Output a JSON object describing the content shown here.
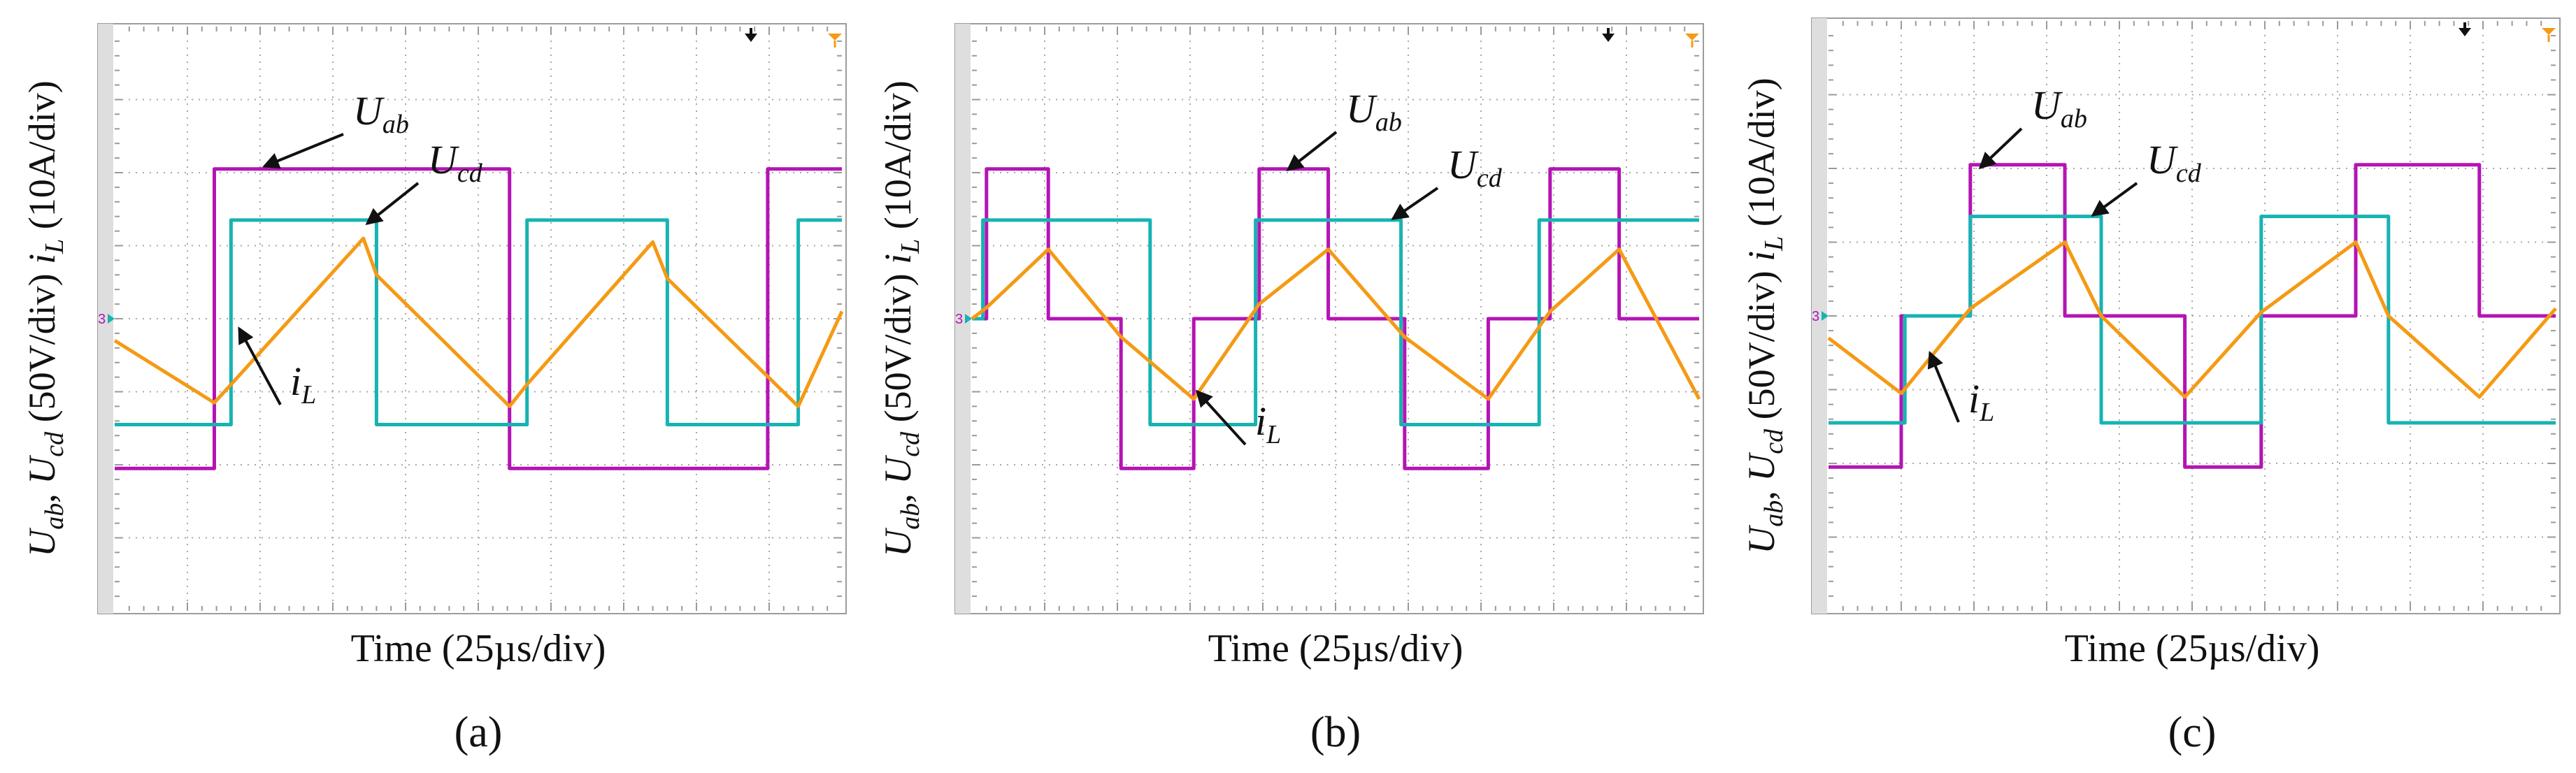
{
  "figure": {
    "xlabel": "Time (25µs/div)",
    "ylabel_parts": {
      "u": "U",
      "ab": "ab",
      "sep": ", ",
      "cd": "cd",
      "mid": " (50V/div) ",
      "i": "i",
      "L": "L",
      "end": " (10A/div)"
    },
    "colors": {
      "Uab": "#b414b4",
      "Ucd": "#17b3b3",
      "iL": "#f59a14",
      "grid": "#a8a8a8",
      "frame": "#9c9c9c"
    },
    "marker_text": "3",
    "grid": {
      "x_divisions": 10,
      "y_divisions": 8
    }
  },
  "chart_data": [
    {
      "type": "line",
      "panel_label": "(a)",
      "xlabel": "Time (25µs/div)",
      "ylabel": "Uab, Ucd (50V/div) iL (10A/div)",
      "xlim": [
        0,
        10
      ],
      "ylim": [
        -4,
        4
      ],
      "annotations": [
        {
          "series": "Uab",
          "base": "U",
          "sub": "ab"
        },
        {
          "series": "Ucd",
          "base": "U",
          "sub": "cd"
        },
        {
          "series": "iL",
          "base": "i",
          "sub": "L"
        }
      ],
      "series": [
        {
          "name": "Uab",
          "x": [
            0,
            1.37,
            1.37,
            5.43,
            5.43,
            8.98,
            8.98,
            10
          ],
          "y": [
            -2.05,
            -2.05,
            2.05,
            2.05,
            -2.05,
            -2.05,
            2.05,
            2.05
          ]
        },
        {
          "name": "Ucd",
          "x": [
            0,
            1.6,
            1.6,
            3.6,
            3.6,
            5.67,
            5.67,
            7.6,
            7.6,
            9.4,
            9.4,
            10
          ],
          "y": [
            -1.45,
            -1.45,
            1.35,
            1.35,
            -1.45,
            -1.45,
            1.35,
            1.35,
            -1.45,
            -1.45,
            1.35,
            1.35
          ]
        },
        {
          "name": "iL",
          "x": [
            0,
            1.37,
            1.6,
            3.42,
            3.6,
            5.43,
            5.67,
            7.4,
            7.6,
            9.4,
            10
          ],
          "y": [
            -0.3,
            -1.15,
            -0.9,
            1.1,
            0.6,
            -1.2,
            -0.9,
            1.05,
            0.55,
            -1.2,
            0.1
          ]
        }
      ]
    },
    {
      "type": "line",
      "panel_label": "(b)",
      "xlabel": "Time (25µs/div)",
      "ylabel": "Uab, Ucd (50V/div) iL (10A/div)",
      "xlim": [
        0,
        10
      ],
      "ylim": [
        -4,
        4
      ],
      "annotations": [
        {
          "series": "Uab",
          "base": "U",
          "sub": "ab"
        },
        {
          "series": "Ucd",
          "base": "U",
          "sub": "cd"
        },
        {
          "series": "iL",
          "base": "i",
          "sub": "L"
        }
      ],
      "series": [
        {
          "name": "Uab",
          "x": [
            0,
            0.2,
            0.2,
            1.05,
            1.05,
            2.05,
            2.05,
            3.05,
            3.05,
            3.95,
            3.95,
            4.9,
            4.9,
            5.95,
            5.95,
            7.1,
            7.1,
            7.95,
            7.95,
            8.9,
            8.9,
            10
          ],
          "y": [
            0,
            0,
            2.05,
            2.05,
            0,
            0,
            -2.05,
            -2.05,
            0,
            0,
            2.05,
            2.05,
            0,
            0,
            -2.05,
            -2.05,
            0,
            0,
            2.05,
            2.05,
            0,
            0
          ]
        },
        {
          "name": "Ucd",
          "x": [
            0,
            0.15,
            0.15,
            2.45,
            2.45,
            3.9,
            3.9,
            5.9,
            5.9,
            7.8,
            7.8,
            10
          ],
          "y": [
            0,
            0,
            1.35,
            1.35,
            -1.45,
            -1.45,
            1.35,
            1.35,
            -1.45,
            -1.45,
            1.35,
            1.35
          ]
        },
        {
          "name": "iL",
          "x": [
            0,
            0.2,
            1.05,
            2.05,
            3.05,
            3.95,
            4.9,
            5.95,
            7.1,
            7.95,
            8.9,
            10
          ],
          "y": [
            0,
            0.15,
            0.95,
            -0.25,
            -1.1,
            0.2,
            0.95,
            -0.25,
            -1.1,
            0.1,
            0.95,
            -1.1
          ]
        }
      ]
    },
    {
      "type": "line",
      "panel_label": "(c)",
      "xlabel": "Time (25µs/div)",
      "ylabel": "Uab, Ucd (50V/div) iL (10A/div)",
      "xlim": [
        0,
        10
      ],
      "ylim": [
        -4,
        4
      ],
      "annotations": [
        {
          "series": "Uab",
          "base": "U",
          "sub": "ab"
        },
        {
          "series": "Ucd",
          "base": "U",
          "sub": "cd"
        },
        {
          "series": "iL",
          "base": "i",
          "sub": "L"
        }
      ],
      "series": [
        {
          "name": "Uab",
          "x": [
            0,
            1.0,
            1.0,
            1.95,
            1.95,
            3.25,
            3.25,
            4.9,
            4.9,
            5.95,
            5.95,
            7.25,
            7.25,
            8.95,
            8.95,
            10
          ],
          "y": [
            -2.05,
            -2.05,
            0,
            0,
            2.05,
            2.05,
            0,
            0,
            -2.05,
            -2.05,
            0,
            0,
            2.05,
            2.05,
            0,
            0
          ]
        },
        {
          "name": "Ucd",
          "x": [
            0,
            1.05,
            1.05,
            1.95,
            1.95,
            3.75,
            3.75,
            5.95,
            5.95,
            7.7,
            7.7,
            10
          ],
          "y": [
            -1.45,
            -1.45,
            0,
            0,
            1.35,
            1.35,
            -1.45,
            -1.45,
            1.35,
            1.35,
            -1.45,
            -1.45
          ]
        },
        {
          "name": "iL",
          "x": [
            0,
            1.0,
            1.95,
            3.25,
            3.75,
            4.9,
            5.95,
            7.25,
            7.7,
            8.95,
            10
          ],
          "y": [
            -0.3,
            -1.05,
            0.1,
            1.0,
            0,
            -1.1,
            0.05,
            1.0,
            0,
            -1.1,
            0.1
          ]
        }
      ]
    }
  ]
}
